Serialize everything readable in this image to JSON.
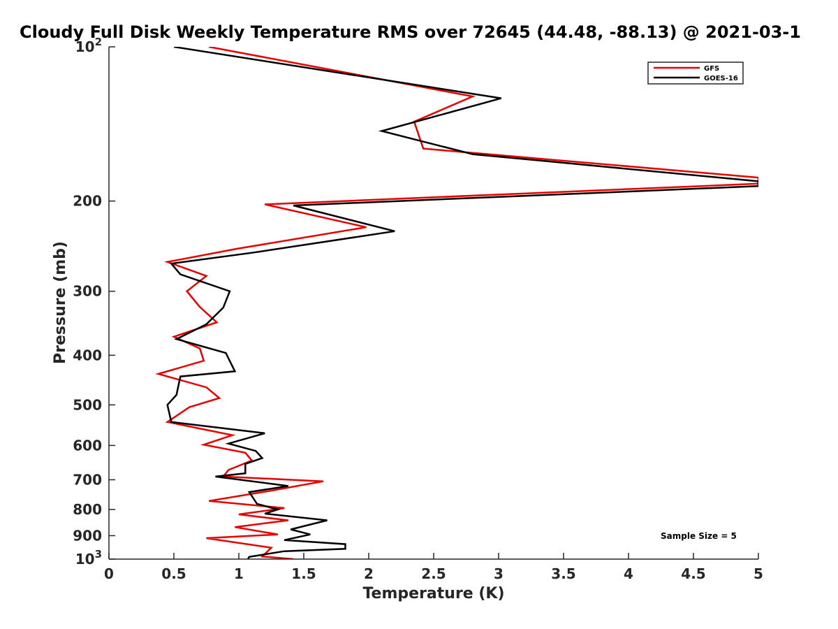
{
  "chart_data": {
    "type": "line",
    "title": "Cloudy Full Disk Weekly Temperature RMS over 72645 (44.48, -88.13) @ 2021-03-1",
    "xlabel": "Temperature (K)",
    "ylabel": "Pressure (mb)",
    "xlim": [
      0,
      5
    ],
    "ylim": [
      100,
      1000
    ],
    "y_scale": "log",
    "y_reversed": true,
    "grid": false,
    "legend_position": "top-right",
    "x_ticks": [
      0,
      0.5,
      1,
      1.5,
      2,
      2.5,
      3,
      3.5,
      4,
      4.5,
      5
    ],
    "x_tick_labels": [
      "0",
      "0.5",
      "1",
      "1.5",
      "2",
      "2.5",
      "3",
      "3.5",
      "4",
      "4.5",
      "5"
    ],
    "y_ticks": [
      {
        "value": 100,
        "base": "10",
        "exp": "2"
      },
      {
        "value": 200,
        "text": "200"
      },
      {
        "value": 300,
        "text": "300"
      },
      {
        "value": 400,
        "text": "400"
      },
      {
        "value": 500,
        "text": "500"
      },
      {
        "value": 600,
        "text": "600"
      },
      {
        "value": 700,
        "text": "700"
      },
      {
        "value": 800,
        "text": "800"
      },
      {
        "value": 900,
        "text": "900"
      },
      {
        "value": 1000,
        "base": "10",
        "exp": "3"
      }
    ],
    "annotation": "Sample Size = 5",
    "series": [
      {
        "name": "GFS",
        "color": "#e60000",
        "points": [
          [
            0.77,
            100
          ],
          [
            2.8,
            125
          ],
          [
            2.35,
            140
          ],
          [
            2.42,
            158
          ],
          [
            5.0,
            180
          ],
          [
            5.0,
            185
          ],
          [
            1.2,
            203
          ],
          [
            1.98,
            225
          ],
          [
            0.98,
            248
          ],
          [
            0.45,
            263
          ],
          [
            0.75,
            280
          ],
          [
            0.6,
            300
          ],
          [
            0.7,
            322
          ],
          [
            0.83,
            345
          ],
          [
            0.5,
            368
          ],
          [
            0.7,
            388
          ],
          [
            0.73,
            410
          ],
          [
            0.38,
            435
          ],
          [
            0.75,
            462
          ],
          [
            0.85,
            485
          ],
          [
            0.62,
            505
          ],
          [
            0.45,
            540
          ],
          [
            0.95,
            573
          ],
          [
            0.73,
            598
          ],
          [
            1.05,
            620
          ],
          [
            1.1,
            642
          ],
          [
            0.92,
            670
          ],
          [
            0.88,
            690
          ],
          [
            1.65,
            705
          ],
          [
            1.25,
            735
          ],
          [
            0.77,
            770
          ],
          [
            1.35,
            795
          ],
          [
            1.0,
            818
          ],
          [
            1.38,
            840
          ],
          [
            0.97,
            866
          ],
          [
            1.3,
            895
          ],
          [
            0.75,
            910
          ],
          [
            1.25,
            950
          ],
          [
            1.18,
            988
          ],
          [
            1.42,
            1000
          ]
        ]
      },
      {
        "name": "GOES-16",
        "color": "#000000",
        "points": [
          [
            0.5,
            100
          ],
          [
            3.02,
            126
          ],
          [
            2.1,
            146
          ],
          [
            2.8,
            162
          ],
          [
            5.0,
            183
          ],
          [
            5.0,
            187
          ],
          [
            1.42,
            204
          ],
          [
            2.2,
            229
          ],
          [
            1.12,
            252
          ],
          [
            0.48,
            265
          ],
          [
            0.55,
            278
          ],
          [
            0.93,
            300
          ],
          [
            0.88,
            323
          ],
          [
            0.75,
            348
          ],
          [
            0.52,
            372
          ],
          [
            0.9,
            396
          ],
          [
            0.97,
            430
          ],
          [
            0.55,
            440
          ],
          [
            0.52,
            478
          ],
          [
            0.45,
            500
          ],
          [
            0.48,
            540
          ],
          [
            1.2,
            568
          ],
          [
            0.92,
            595
          ],
          [
            1.13,
            615
          ],
          [
            1.18,
            635
          ],
          [
            1.05,
            652
          ],
          [
            1.05,
            680
          ],
          [
            0.82,
            690
          ],
          [
            1.38,
            720
          ],
          [
            1.08,
            740
          ],
          [
            1.14,
            780
          ],
          [
            1.3,
            800
          ],
          [
            1.2,
            815
          ],
          [
            1.68,
            840
          ],
          [
            1.4,
            875
          ],
          [
            1.55,
            895
          ],
          [
            1.35,
            918
          ],
          [
            1.82,
            935
          ],
          [
            1.82,
            955
          ],
          [
            1.35,
            965
          ],
          [
            1.08,
            990
          ],
          [
            1.07,
            1000
          ]
        ]
      }
    ]
  }
}
